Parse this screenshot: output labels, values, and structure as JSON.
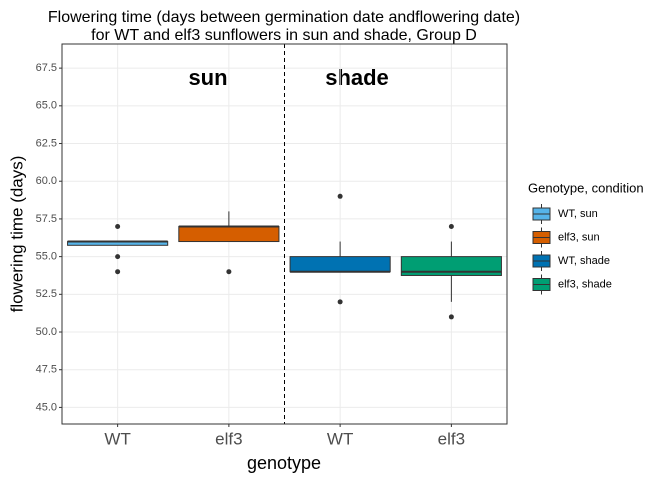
{
  "chart_data": {
    "type": "box",
    "title": [
      "Flowering time (days between germination date andflowering date)",
      "for WT and elf3 sunflowers in sun and shade, Group D"
    ],
    "x_label": "genotype",
    "y_label": "flowering time (days)",
    "categories": [
      "WT",
      "elf3",
      "WT",
      "elf3"
    ],
    "annotations": [
      "sun",
      "shade"
    ],
    "legend_title": "Genotype, condition",
    "series": [
      {
        "name": "WT, sun",
        "color": "#56B4E9",
        "q1": 55.75,
        "median": 56,
        "q3": 56,
        "whislo": 55.75,
        "whishi": 56,
        "outliers": [
          57,
          55,
          54
        ]
      },
      {
        "name": "elf3, sun",
        "color": "#D55E00",
        "q1": 56,
        "median": 57,
        "q3": 57,
        "whislo": 56,
        "whishi": 58,
        "outliers": [
          54
        ]
      },
      {
        "name": "WT, shade",
        "color": "#0072B2",
        "q1": 54,
        "median": 54,
        "q3": 55,
        "whislo": 54,
        "whishi": 56,
        "outliers": [
          59,
          52
        ]
      },
      {
        "name": "elf3, shade",
        "color": "#009E73",
        "q1": 53.75,
        "median": 54,
        "q3": 55,
        "whislo": 52,
        "whishi": 56,
        "outliers": [
          57,
          51
        ]
      }
    ],
    "ylim": [
      43.9,
      69.1
    ],
    "yticks": [
      {
        "value": 45,
        "label": "45.0"
      },
      {
        "value": 47.5,
        "label": "47.5"
      },
      {
        "value": 50,
        "label": "50.0"
      },
      {
        "value": 52.5,
        "label": "52.5"
      },
      {
        "value": 55,
        "label": "55.0"
      },
      {
        "value": 57.5,
        "label": "57.5"
      },
      {
        "value": 60,
        "label": "60.0"
      },
      {
        "value": 62.5,
        "label": "62.5"
      },
      {
        "value": 65,
        "label": "65.0"
      },
      {
        "value": 67.5,
        "label": "67.5"
      }
    ],
    "grid": true,
    "legend": "right"
  }
}
